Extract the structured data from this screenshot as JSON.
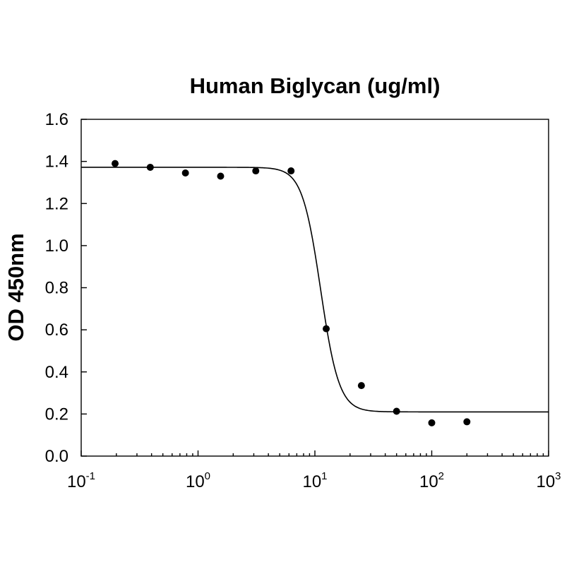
{
  "chart_data": {
    "type": "scatter",
    "title": "Human Biglycan (ug/ml)",
    "xlabel": "",
    "ylabel": "OD 450nm",
    "x_scale": "log",
    "xlim": [
      0.1,
      1000
    ],
    "ylim": [
      0,
      1.6
    ],
    "grid": false,
    "x_ticks": [
      {
        "base": "10",
        "exp": "-1",
        "value": 0.1
      },
      {
        "base": "10",
        "exp": "0",
        "value": 1
      },
      {
        "base": "10",
        "exp": "1",
        "value": 10
      },
      {
        "base": "10",
        "exp": "2",
        "value": 100
      },
      {
        "base": "10",
        "exp": "3",
        "value": 1000
      }
    ],
    "y_ticks": [
      {
        "label": "0.0",
        "value": 0
      },
      {
        "label": "0.2",
        "value": 0.2
      },
      {
        "label": "0.4",
        "value": 0.4
      },
      {
        "label": "0.6",
        "value": 0.6
      },
      {
        "label": "0.8",
        "value": 0.8
      },
      {
        "label": "1.0",
        "value": 1.0
      },
      {
        "label": "1.2",
        "value": 1.2
      },
      {
        "label": "1.4",
        "value": 1.4
      },
      {
        "label": "1.6",
        "value": 1.6
      }
    ],
    "series": [
      {
        "points": [
          {
            "x": 0.195,
            "y": 1.39
          },
          {
            "x": 0.39,
            "y": 1.372
          },
          {
            "x": 0.78,
            "y": 1.345
          },
          {
            "x": 1.56,
            "y": 1.33
          },
          {
            "x": 3.12,
            "y": 1.355
          },
          {
            "x": 6.25,
            "y": 1.355
          },
          {
            "x": 12.5,
            "y": 0.605
          },
          {
            "x": 25,
            "y": 0.335
          },
          {
            "x": 50,
            "y": 0.213
          },
          {
            "x": 100,
            "y": 0.158
          },
          {
            "x": 200,
            "y": 0.163
          }
        ]
      }
    ],
    "fit_curve": {
      "model": "4PL",
      "top": 1.372,
      "bottom": 0.21,
      "ec50": 11.2,
      "hill": 5.5
    }
  }
}
